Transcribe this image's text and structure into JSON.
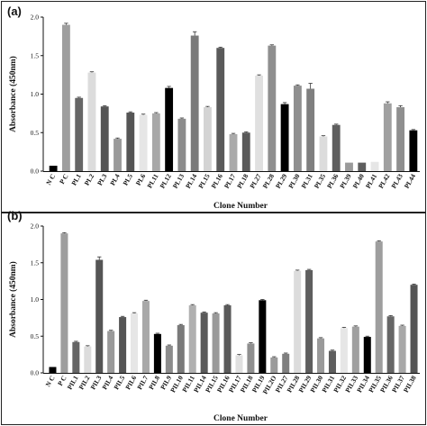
{
  "chart_data": [
    {
      "panel_label": "(a)",
      "type": "bar",
      "ylabel": "Absorbance (450nm)",
      "xlabel": "Clone Number",
      "ylim": [
        0,
        2.0
      ],
      "yticks": [
        "0.0",
        "0.5",
        "1.0",
        "1.5",
        "2.0"
      ],
      "categories": [
        "N C",
        "P C",
        "PL1",
        "PL2",
        "PL3",
        "PL4",
        "PL5",
        "PL6",
        "PL11",
        "PL12",
        "PL13",
        "PL14",
        "PL15",
        "PL16",
        "PL17",
        "PL18",
        "PL27",
        "PL28",
        "PL29",
        "PL30",
        "PL31",
        "PL35",
        "PL36",
        "PL39",
        "PL40",
        "PL41",
        "PL42",
        "PL43",
        "PL44"
      ],
      "values": [
        0.07,
        1.9,
        0.95,
        1.28,
        0.84,
        0.42,
        0.76,
        0.73,
        0.75,
        1.08,
        0.68,
        1.76,
        0.83,
        1.6,
        0.48,
        0.5,
        1.24,
        1.63,
        0.87,
        1.11,
        1.07,
        0.45,
        0.6,
        0.11,
        0.11,
        0.12,
        0.88,
        0.83,
        0.53
      ],
      "errors": [
        0,
        0.02,
        0.01,
        0.01,
        0.01,
        0.01,
        0.01,
        0.01,
        0.01,
        0.02,
        0.01,
        0.05,
        0.01,
        0.01,
        0.01,
        0.01,
        0.01,
        0.01,
        0.02,
        0.01,
        0.07,
        0.01,
        0.01,
        0,
        0,
        0,
        0.02,
        0.02,
        0.01
      ],
      "colors": [
        "#000000",
        "#9e9e9e",
        "#666666",
        "#dcdcdc",
        "#555555",
        "#9a9a9a",
        "#555555",
        "#e6e6e6",
        "#a8a8a8",
        "#000000",
        "#8c8c8c",
        "#7a7a7a",
        "#d4d4d4",
        "#5a5a5a",
        "#aaaaaa",
        "#5a5a5a",
        "#e0e0e0",
        "#8f8f8f",
        "#000000",
        "#8f8f8f",
        "#7f7f7f",
        "#dcdcdc",
        "#5e5e5e",
        "#9a9a9a",
        "#5e5e5e",
        "#e6e6e6",
        "#a0a0a0",
        "#8f8f8f",
        "#000000"
      ]
    },
    {
      "panel_label": "(b)",
      "type": "bar",
      "ylabel": "Absorbance (450nm)",
      "xlabel": "Clone Number",
      "ylim": [
        0,
        2.0
      ],
      "yticks": [
        "0.0",
        "0.5",
        "1.0",
        "1.5",
        "2.0"
      ],
      "categories": [
        "N C",
        "P C",
        "PIL1",
        "PIL2",
        "PIL3",
        "PIL4",
        "PIL5",
        "PIL6",
        "PIL7",
        "PIL8",
        "PIL9",
        "PIL10",
        "PIL11",
        "PIL14",
        "PIL15",
        "PIL16",
        "PIL17",
        "PIL18",
        "PIL19",
        "PIL2O",
        "PIL27",
        "PIL28",
        "PIL29",
        "PIL30",
        "PIL31",
        "PIL32",
        "PIL33",
        "PIL34",
        "PIL35",
        "PIL36",
        "PIL37",
        "PIL38"
      ],
      "values": [
        0.08,
        1.9,
        0.42,
        0.36,
        1.54,
        0.57,
        0.76,
        0.81,
        0.98,
        0.53,
        0.37,
        0.65,
        0.92,
        0.82,
        0.81,
        0.92,
        0.24,
        0.4,
        0.99,
        0.21,
        0.26,
        1.39,
        1.4,
        0.47,
        0.3,
        0.61,
        0.63,
        0.49,
        1.79,
        0.77,
        0.64,
        1.2
      ],
      "errors": [
        0,
        0.01,
        0.01,
        0.01,
        0.04,
        0.01,
        0.01,
        0.01,
        0.01,
        0.01,
        0.01,
        0.01,
        0.01,
        0.01,
        0.01,
        0.01,
        0.01,
        0.01,
        0.01,
        0.01,
        0.01,
        0.01,
        0.01,
        0.01,
        0.01,
        0.01,
        0.01,
        0.01,
        0.01,
        0.01,
        0.01,
        0.01
      ],
      "colors": [
        "#000000",
        "#9e9e9e",
        "#666666",
        "#dcdcdc",
        "#555555",
        "#9a9a9a",
        "#555555",
        "#e6e6e6",
        "#a8a8a8",
        "#000000",
        "#8c8c8c",
        "#7a7a7a",
        "#b0b0b0",
        "#5a5a5a",
        "#9a9a9a",
        "#5a5a5a",
        "#e0e0e0",
        "#8f8f8f",
        "#000000",
        "#9a9a9a",
        "#7f7f7f",
        "#dcdcdc",
        "#5e5e5e",
        "#9a9a9a",
        "#5e5e5e",
        "#e6e6e6",
        "#a0a0a0",
        "#000000",
        "#9e9e9e",
        "#666666",
        "#a8a8a8",
        "#555555"
      ]
    }
  ]
}
